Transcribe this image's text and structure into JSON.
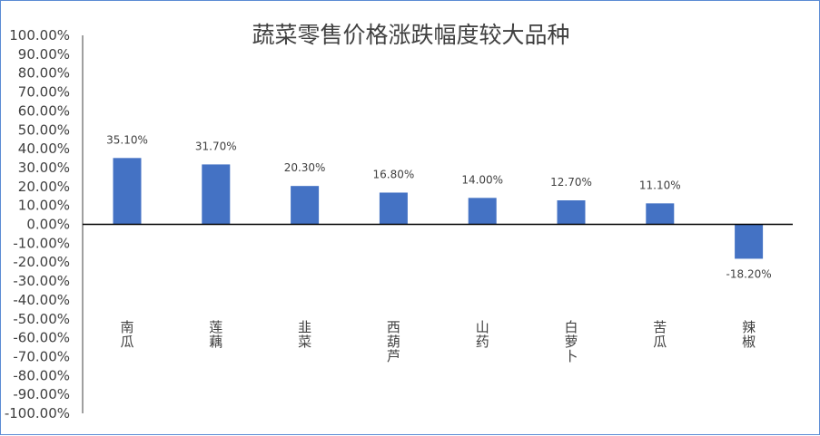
{
  "chart_data": {
    "type": "bar",
    "title": "蔬菜零售价格涨跌幅度较大品种",
    "xlabel": "",
    "ylabel": "",
    "categories": [
      "南瓜",
      "莲藕",
      "韭菜",
      "西葫芦",
      "山药",
      "白萝卜",
      "苦瓜",
      "辣椒"
    ],
    "values": [
      35.1,
      31.7,
      20.3,
      16.8,
      14.0,
      12.7,
      11.1,
      -18.2
    ],
    "value_labels": [
      "35.10%",
      "31.70%",
      "20.30%",
      "16.80%",
      "14.00%",
      "12.70%",
      "11.10%",
      "-18.20%"
    ],
    "ylim": [
      -100,
      100
    ],
    "yticks": [
      100,
      90,
      80,
      70,
      60,
      50,
      40,
      30,
      20,
      10,
      0,
      -10,
      -20,
      -30,
      -40,
      -50,
      -60,
      -70,
      -80,
      -90,
      -100
    ],
    "ytick_labels": [
      "100.00%",
      "90.00%",
      "80.00%",
      "70.00%",
      "60.00%",
      "50.00%",
      "40.00%",
      "30.00%",
      "20.00%",
      "10.00%",
      "0.00%",
      "-10.00%",
      "-20.00%",
      "-30.00%",
      "-40.00%",
      "-50.00%",
      "-60.00%",
      "-70.00%",
      "-80.00%",
      "-90.00%",
      "-100.00%"
    ],
    "grid": false,
    "legend": "none",
    "bar_color": "#4472c4"
  }
}
